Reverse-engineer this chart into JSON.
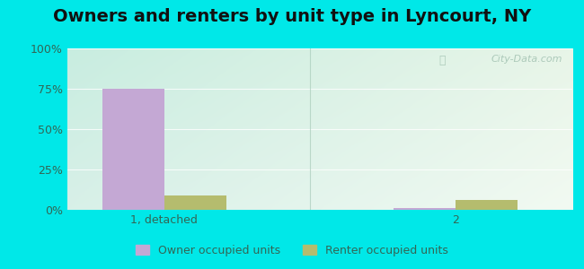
{
  "title": "Owners and renters by unit type in Lyncourt, NY",
  "categories": [
    "1, detached",
    "2"
  ],
  "owner_values": [
    75,
    1
  ],
  "renter_values": [
    9,
    6
  ],
  "owner_color": "#c4a8d4",
  "renter_color": "#b5bc6e",
  "outer_bg": "#00e8e8",
  "plot_bg_topleft": "#c8ede0",
  "plot_bg_topright": "#e8f5e8",
  "plot_bg_bottomleft": "#d8f0e0",
  "plot_bg_bottomright": "#f0faf0",
  "yticks": [
    0,
    25,
    50,
    75,
    100
  ],
  "ytick_labels": [
    "0%",
    "25%",
    "50%",
    "75%",
    "100%"
  ],
  "bar_width": 0.32,
  "legend_owner": "Owner occupied units",
  "legend_renter": "Renter occupied units",
  "watermark": "City-Data.com",
  "title_fontsize": 14,
  "axis_fontsize": 9,
  "label_color": "#336655"
}
